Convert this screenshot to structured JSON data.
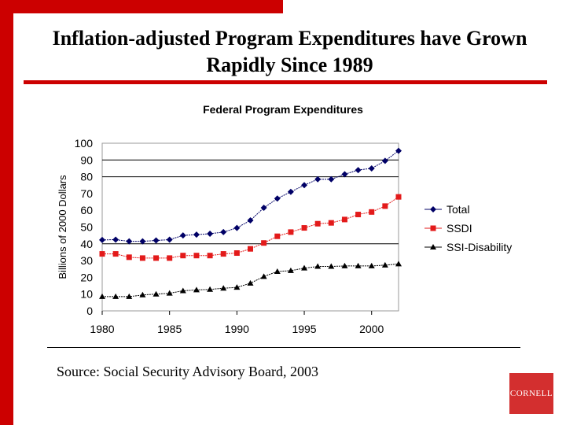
{
  "slide": {
    "title_line1": "Inflation-adjusted Program Expenditures have Grown",
    "title_line2": "Rapidly Since 1989",
    "source": "Source: Social Security Advisory Board, 2003",
    "logo": "CORNELL",
    "accent": "#cc0000"
  },
  "chart_data": {
    "type": "line",
    "title": "Federal Program Expenditures",
    "xlabel": "",
    "ylabel": "Billions of 2000 Dollars",
    "ylim": [
      0,
      100
    ],
    "yticks": [
      0,
      10,
      20,
      30,
      40,
      50,
      60,
      70,
      80,
      90,
      100
    ],
    "xticks": [
      1980,
      1985,
      1990,
      1995,
      2000
    ],
    "legend": "right",
    "x": [
      1980,
      1981,
      1982,
      1983,
      1984,
      1985,
      1986,
      1987,
      1988,
      1989,
      1990,
      1991,
      1992,
      1993,
      1994,
      1995,
      1996,
      1997,
      1998,
      1999,
      2000,
      2001,
      2002
    ],
    "series": [
      {
        "name": "Total",
        "color": "#000066",
        "marker": "diamond",
        "values": [
          42.3,
          42.5,
          41.5,
          41.5,
          42,
          42.5,
          45,
          45.5,
          46,
          47,
          49.5,
          54,
          61.5,
          67,
          71,
          75,
          78.5,
          78.5,
          81.5,
          84,
          85,
          89.5,
          95.5
        ]
      },
      {
        "name": "SSDI",
        "color": "#e31a1a",
        "marker": "square",
        "values": [
          34,
          34,
          32,
          31.5,
          31.5,
          31.5,
          33,
          33,
          33,
          34,
          34.5,
          37,
          40.5,
          44.5,
          47,
          49.5,
          52,
          52.5,
          54.5,
          57.5,
          59,
          62.5,
          68
        ]
      },
      {
        "name": "SSI-Disability",
        "color": "#000000",
        "marker": "triangle",
        "values": [
          8.5,
          8.5,
          8.5,
          9.5,
          10,
          10.5,
          12,
          12.5,
          12.8,
          13.5,
          14,
          16.5,
          20.5,
          23.5,
          24,
          25.5,
          26.5,
          26.5,
          26.8,
          26.8,
          26.8,
          27.3,
          28
        ]
      }
    ]
  }
}
